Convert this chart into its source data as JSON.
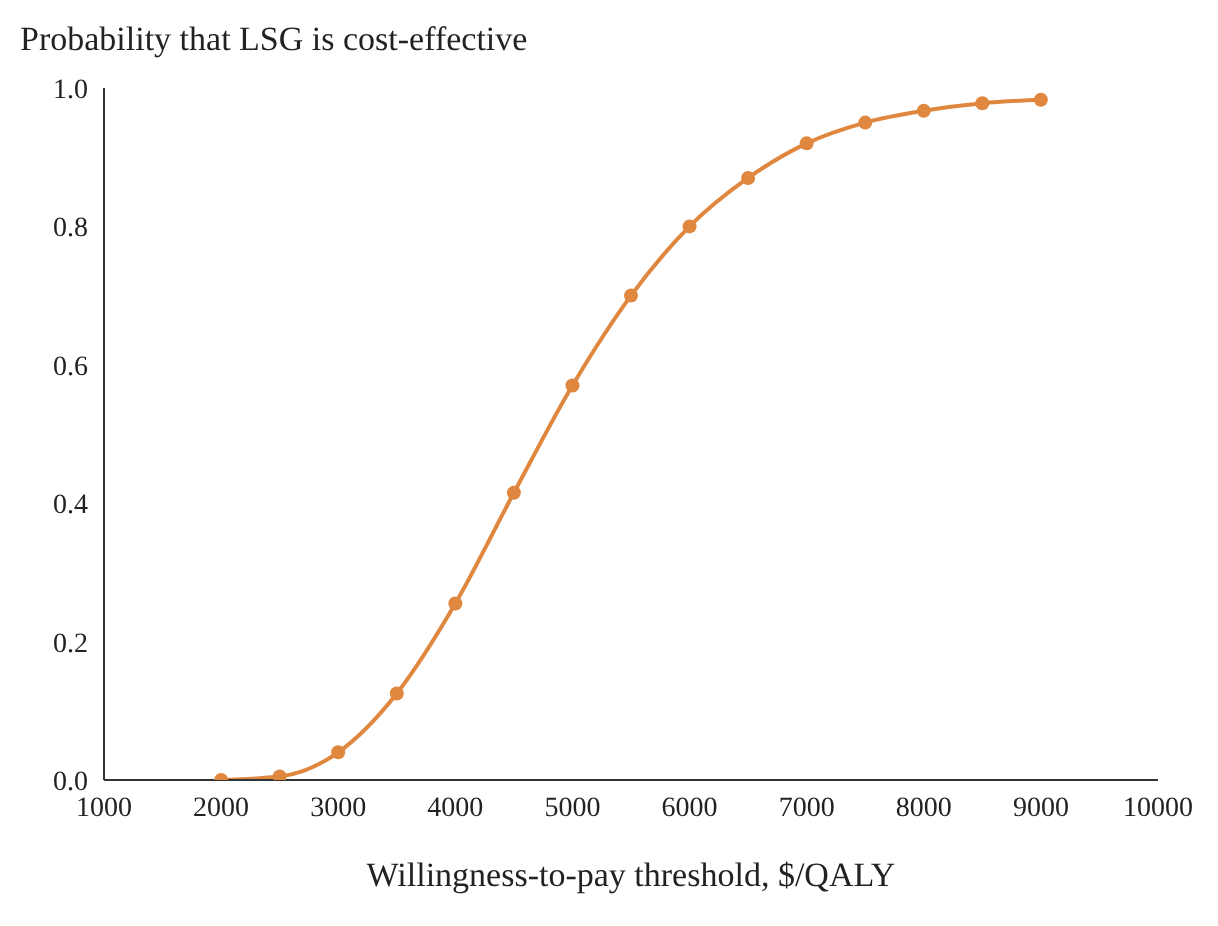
{
  "chart_data": {
    "type": "line",
    "title": "Probability that LSG is cost-effective",
    "xlabel": "Willingness-to-pay threshold, $/QALY",
    "x": [
      2000,
      2500,
      3000,
      3500,
      4000,
      4500,
      5000,
      5500,
      6000,
      6500,
      7000,
      7500,
      8000,
      8500,
      9000
    ],
    "series": [
      {
        "color": "#e0873f",
        "values": [
          0,
          0.005,
          0.04,
          0.125,
          0.255,
          0.415,
          0.57,
          0.7,
          0.8,
          0.87,
          0.92,
          0.95,
          0.967,
          0.978,
          0.983
        ]
      }
    ],
    "xlim": [
      1000,
      10000
    ],
    "xticks": [
      1000,
      2000,
      3000,
      4000,
      5000,
      6000,
      7000,
      8000,
      9000,
      10000
    ],
    "ylim": [
      0,
      1
    ],
    "yticks": [
      {
        "value": 0,
        "label": "0.0"
      },
      {
        "value": 0.2,
        "label": "0.2"
      },
      {
        "value": 0.4,
        "label": "0.4"
      },
      {
        "value": 0.6,
        "label": "0.6"
      },
      {
        "value": 0.8,
        "label": "0.8"
      },
      {
        "value": 1,
        "label": "1.0"
      }
    ],
    "grid": false,
    "legend": false,
    "marker": "circle",
    "line_style": "solid"
  }
}
